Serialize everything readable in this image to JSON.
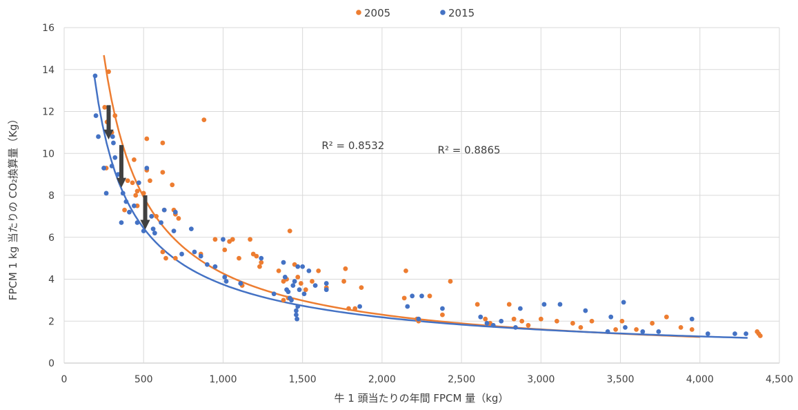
{
  "chart_data": {
    "type": "scatter",
    "title": "",
    "xlabel": "牛 1 頭当たりの年間 FPCM 量（kg）",
    "ylabel": "FPCM 1 kg 当たりの CO₂換算量（Kg）",
    "xlim": [
      0,
      4500
    ],
    "ylim": [
      0,
      16
    ],
    "x_ticks": [
      0,
      500,
      1000,
      1500,
      2000,
      2500,
      3000,
      3500,
      4000,
      4500
    ],
    "x_tick_labels": [
      "0",
      "500",
      "1,000",
      "1,500",
      "2,000",
      "2,500",
      "3,000",
      "3,500",
      "4,000",
      "4,500"
    ],
    "y_ticks": [
      0,
      2,
      4,
      6,
      8,
      10,
      12,
      14,
      16
    ],
    "y_tick_labels": [
      "0",
      "2",
      "4",
      "6",
      "8",
      "10",
      "12",
      "14",
      "16"
    ],
    "grid": true,
    "legend_position": "top",
    "annotations": [
      {
        "text": "R² = 0.8532",
        "x": 1620,
        "y": 10.2
      },
      {
        "text": "R² = 0.8865",
        "x": 2350,
        "y": 10.0
      }
    ],
    "arrows": [
      {
        "x": 280,
        "y_from": 12.3,
        "y_to": 10.9
      },
      {
        "x": 360,
        "y_from": 10.4,
        "y_to": 8.6
      },
      {
        "x": 510,
        "y_from": 8.0,
        "y_to": 6.6
      }
    ],
    "series": [
      {
        "name": "2005",
        "color": "#ed7d31",
        "trend_color": "#ed7d31",
        "trend_range": [
          250,
          4000
        ],
        "trend": {
          "type": "power",
          "a": 2000,
          "b": -0.89
        },
        "points": [
          [
            280,
            13.9
          ],
          [
            255,
            12.2
          ],
          [
            320,
            11.8
          ],
          [
            270,
            11.5
          ],
          [
            300,
            11.0
          ],
          [
            265,
            9.3
          ],
          [
            440,
            9.7
          ],
          [
            880,
            11.6
          ],
          [
            520,
            10.7
          ],
          [
            620,
            10.5
          ],
          [
            520,
            9.2
          ],
          [
            620,
            9.1
          ],
          [
            540,
            8.7
          ],
          [
            400,
            8.7
          ],
          [
            430,
            8.6
          ],
          [
            460,
            8.2
          ],
          [
            500,
            8.1
          ],
          [
            680,
            8.5
          ],
          [
            380,
            7.3
          ],
          [
            450,
            8.0
          ],
          [
            460,
            7.5
          ],
          [
            550,
            7.0
          ],
          [
            630,
            7.3
          ],
          [
            690,
            7.3
          ],
          [
            700,
            7.1
          ],
          [
            720,
            6.9
          ],
          [
            580,
            7.0
          ],
          [
            620,
            5.3
          ],
          [
            640,
            5.0
          ],
          [
            700,
            5.0
          ],
          [
            860,
            5.2
          ],
          [
            950,
            5.9
          ],
          [
            1010,
            5.4
          ],
          [
            1040,
            5.8
          ],
          [
            1060,
            5.9
          ],
          [
            1100,
            5.0
          ],
          [
            1170,
            5.9
          ],
          [
            1190,
            5.2
          ],
          [
            1210,
            5.1
          ],
          [
            1230,
            4.6
          ],
          [
            1240,
            4.8
          ],
          [
            1120,
            3.7
          ],
          [
            1350,
            4.4
          ],
          [
            1380,
            3.9
          ],
          [
            1420,
            6.3
          ],
          [
            1400,
            4.0
          ],
          [
            1450,
            4.7
          ],
          [
            1470,
            4.1
          ],
          [
            1490,
            3.8
          ],
          [
            1520,
            3.5
          ],
          [
            1560,
            3.9
          ],
          [
            1600,
            4.4
          ],
          [
            1650,
            3.6
          ],
          [
            1770,
            4.5
          ],
          [
            1760,
            3.9
          ],
          [
            1790,
            2.6
          ],
          [
            1830,
            2.6
          ],
          [
            1870,
            3.6
          ],
          [
            1410,
            3.1
          ],
          [
            1380,
            3.0
          ],
          [
            2150,
            4.4
          ],
          [
            2140,
            3.1
          ],
          [
            2220,
            2.1
          ],
          [
            2230,
            2.0
          ],
          [
            2300,
            3.2
          ],
          [
            2380,
            2.3
          ],
          [
            2430,
            3.9
          ],
          [
            2600,
            2.8
          ],
          [
            2650,
            2.1
          ],
          [
            2680,
            1.9
          ],
          [
            2800,
            2.8
          ],
          [
            2830,
            2.1
          ],
          [
            2880,
            2.0
          ],
          [
            2920,
            1.8
          ],
          [
            3000,
            2.1
          ],
          [
            3100,
            2.0
          ],
          [
            3200,
            1.9
          ],
          [
            3250,
            1.7
          ],
          [
            3320,
            2.0
          ],
          [
            3470,
            1.6
          ],
          [
            3510,
            2.0
          ],
          [
            3600,
            1.6
          ],
          [
            3700,
            1.9
          ],
          [
            3790,
            2.2
          ],
          [
            3880,
            1.7
          ],
          [
            3950,
            1.6
          ],
          [
            4360,
            1.5
          ],
          [
            4370,
            1.4
          ],
          [
            4380,
            1.3
          ]
        ]
      },
      {
        "name": "2015",
        "color": "#4472c4",
        "trend_color": "#4472c4",
        "trend_range": [
          190,
          4300
        ],
        "trend": {
          "type": "power",
          "a": 820,
          "b": -0.78
        },
        "points": [
          [
            195,
            13.7
          ],
          [
            200,
            11.8
          ],
          [
            215,
            10.8
          ],
          [
            250,
            9.3
          ],
          [
            250,
            9.3
          ],
          [
            265,
            8.1
          ],
          [
            300,
            9.4
          ],
          [
            305,
            10.8
          ],
          [
            310,
            10.5
          ],
          [
            320,
            9.8
          ],
          [
            340,
            9.0
          ],
          [
            360,
            6.7
          ],
          [
            370,
            8.1
          ],
          [
            390,
            7.7
          ],
          [
            410,
            7.2
          ],
          [
            440,
            7.5
          ],
          [
            460,
            6.7
          ],
          [
            470,
            8.6
          ],
          [
            500,
            6.3
          ],
          [
            520,
            9.3
          ],
          [
            550,
            7.0
          ],
          [
            560,
            6.4
          ],
          [
            570,
            6.2
          ],
          [
            610,
            6.7
          ],
          [
            630,
            7.3
          ],
          [
            690,
            6.3
          ],
          [
            700,
            7.2
          ],
          [
            740,
            5.2
          ],
          [
            800,
            6.4
          ],
          [
            820,
            5.3
          ],
          [
            860,
            5.1
          ],
          [
            900,
            4.7
          ],
          [
            950,
            4.6
          ],
          [
            1000,
            5.9
          ],
          [
            1010,
            4.1
          ],
          [
            1020,
            3.9
          ],
          [
            1110,
            3.8
          ],
          [
            1240,
            5.0
          ],
          [
            1320,
            3.3
          ],
          [
            1380,
            4.8
          ],
          [
            1390,
            4.1
          ],
          [
            1400,
            3.5
          ],
          [
            1410,
            3.4
          ],
          [
            1420,
            3.1
          ],
          [
            1430,
            3.0
          ],
          [
            1440,
            3.7
          ],
          [
            1450,
            3.9
          ],
          [
            1460,
            2.5
          ],
          [
            1460,
            2.3
          ],
          [
            1465,
            2.1
          ],
          [
            1470,
            2.7
          ],
          [
            1470,
            4.6
          ],
          [
            1480,
            3.5
          ],
          [
            1500,
            4.6
          ],
          [
            1510,
            3.3
          ],
          [
            1540,
            4.4
          ],
          [
            1580,
            3.7
          ],
          [
            1650,
            3.8
          ],
          [
            1650,
            3.5
          ],
          [
            1860,
            2.7
          ],
          [
            2160,
            2.7
          ],
          [
            2190,
            3.2
          ],
          [
            2230,
            2.1
          ],
          [
            2250,
            3.2
          ],
          [
            2380,
            2.6
          ],
          [
            2620,
            2.2
          ],
          [
            2660,
            1.9
          ],
          [
            2700,
            1.8
          ],
          [
            2750,
            2.0
          ],
          [
            2840,
            1.7
          ],
          [
            2870,
            2.6
          ],
          [
            3020,
            2.8
          ],
          [
            3120,
            2.8
          ],
          [
            3280,
            2.5
          ],
          [
            3420,
            1.5
          ],
          [
            3440,
            2.2
          ],
          [
            3520,
            2.9
          ],
          [
            3530,
            1.7
          ],
          [
            3640,
            1.5
          ],
          [
            3740,
            1.5
          ],
          [
            3950,
            2.1
          ],
          [
            4050,
            1.4
          ],
          [
            4220,
            1.4
          ],
          [
            4290,
            1.4
          ]
        ]
      }
    ]
  }
}
